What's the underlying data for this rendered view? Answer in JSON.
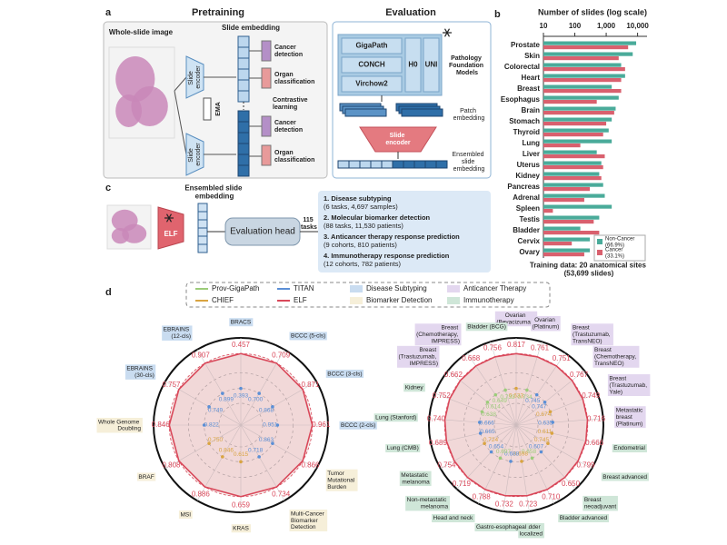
{
  "panel_a": {
    "letter": "a",
    "pretraining_title": "Pretraining",
    "evaluation_title": "Evaluation",
    "wsi_label": "Whole-slide image",
    "slide_embedding": "Slide embedding",
    "slide_encoder": "Slide encoder",
    "ema": "EMA",
    "contrastive": "Contrastive learning",
    "cancer_detection": "Cancer detection",
    "organ_classification": "Organ classification",
    "models": [
      "GigaPath",
      "CONCH",
      "Virchow2",
      "H0",
      "UNI"
    ],
    "foundation_label": "Pathology Foundation Models",
    "patch_embedding": "Patch embedding",
    "ensembled_slide_embedding": "Ensembled slide embedding"
  },
  "panel_c": {
    "letter": "c",
    "ensembled": "Ensembled slide embedding",
    "elf": "ELF",
    "head": "Evaluation head",
    "tasks": "115 tasks",
    "items": [
      {
        "title": "1. Disease subtyping",
        "detail": "(6 tasks, 4,697 samples)"
      },
      {
        "title": "2. Molecular biomarker detection",
        "detail": "(88 tasks, 11,530 patients)"
      },
      {
        "title": "3. Anticancer therapy response prediction",
        "detail": "(9 cohorts, 810 patients)"
      },
      {
        "title": "4. Immunotherapy response prediction",
        "detail": "(12 cohorts, 782 patients)"
      }
    ]
  },
  "panel_d": {
    "letter": "d",
    "models": [
      {
        "name": "Prov-GigaPath",
        "color": "#9ccc7a"
      },
      {
        "name": "CHIEF",
        "color": "#d9a441"
      },
      {
        "name": "TITAN",
        "color": "#5b8fd6"
      },
      {
        "name": "ELF",
        "color": "#d9485a"
      }
    ],
    "task_types": [
      {
        "name": "Disease Subtyping",
        "color": "#c9dcf0"
      },
      {
        "name": "Biomarker Detection",
        "color": "#f6efd9"
      },
      {
        "name": "Anticancer Therapy",
        "color": "#e3d7ef"
      },
      {
        "name": "Immunotherapy",
        "color": "#cfe6d8"
      }
    ]
  },
  "chart_data": [
    {
      "type": "bar",
      "letter": "b",
      "orientation": "horizontal",
      "xlabel": "Number of slides (log scale)",
      "x_scale": "log",
      "xlim": [
        10,
        20000
      ],
      "xticks": [
        10,
        100,
        {
          "value": 1000,
          "label": "1,000"
        },
        {
          "value": 10000,
          "label": "10,000"
        }
      ],
      "categories": [
        "Prostate",
        "Skin",
        "Colorectal",
        "Heart",
        "Breast",
        "Esophagus",
        "Brain",
        "Stomach",
        "Thyroid",
        "Lung",
        "Liver",
        "Uterus",
        "Kidney",
        "Pancreas",
        "Adrenal",
        "Spleen",
        "Testis",
        "Bladder",
        "Cervix",
        "Ovary"
      ],
      "series": [
        {
          "name": "Non-Cancer (66.9%)",
          "color": "#4aab9a",
          "values": [
            9000,
            7000,
            3000,
            4000,
            1500,
            2500,
            2000,
            1500,
            1200,
            1500,
            500,
            700,
            600,
            800,
            900,
            1500,
            600,
            150,
            300,
            300
          ]
        },
        {
          "name": "Cancer (33.1%)",
          "color": "#d9606e",
          "values": [
            5000,
            2500,
            4000,
            3000,
            3000,
            500,
            1800,
            1000,
            800,
            150,
            900,
            800,
            700,
            300,
            200,
            20,
            400,
            600,
            80,
            200
          ]
        }
      ],
      "legend": "lower right",
      "footnote": "Training data: 20 anatomical sites (53,699 slides)"
    },
    {
      "type": "radar",
      "axes": [
        "BRACS",
        "BCCC (5-cls)",
        "BCCC (3-cls)",
        "BCCC (2-cls)",
        "Tumor Mutational Burden",
        "Multi-Cancer Biomarker Detection",
        "KRAS",
        "MSI",
        "BRAF",
        "Whole Genome Doubling",
        "EBRAINS (30-cls)",
        "EBRAINS (12-cls)"
      ],
      "tasks": [
        0,
        0,
        0,
        0,
        1,
        1,
        1,
        1,
        1,
        1,
        0,
        0
      ],
      "series": [
        {
          "name": "ELF",
          "color": "#d9485a",
          "values": [
            0.457,
            0.709,
            0.871,
            0.961,
            0.866,
            0.734,
            0.659,
            0.886,
            0.808,
            0.846,
            0.757,
            0.907
          ],
          "value_labels": [
            "0.457",
            "0.709",
            "0.871",
            "0.961",
            "0.866",
            "0.734",
            "0.659",
            "0.886",
            "0.808",
            "0.846",
            "0.757",
            "0.907"
          ]
        }
      ],
      "baseline_values": [
        0.393,
        0.7,
        0.868,
        0.951,
        0.863,
        0.718,
        0.615,
        0.846,
        0.75,
        0.822,
        0.749,
        0.899
      ],
      "baseline_value_labels": [
        "0.393",
        "0.700",
        "0.868",
        "0.951",
        "0.863",
        "0.718",
        "0.615",
        "0.846",
        "0.750",
        "0.822",
        "0.749",
        "0.899"
      ],
      "baseline_colors": [
        "#5b8fd6",
        "#5b8fd6",
        "#5b8fd6",
        "#5b8fd6",
        "#5b8fd6",
        "#5b8fd6",
        "#d9a441",
        "#d9a441",
        "#d9a441",
        "#5b8fd6",
        "#5b8fd6",
        "#5b8fd6"
      ]
    },
    {
      "type": "radar",
      "axes": [
        "Ovarian (Bevacizumab)",
        "Ovarian (Platinum)",
        "Breast (Trastuzumab, TransNEO)",
        "Breast (Chemotherapy, TransNEO)",
        "Breast (Trastuzumab, Yale)",
        "Metastatic breast (Platinum)",
        "Endometrial",
        "Breast advanced",
        "Breast neoadjuvant",
        "Bladder advanced",
        "Bladder localized",
        "Gastro-esophageal",
        "Head and neck",
        "Non-metastatic melanoma",
        "Metastatic melanoma",
        "Lung (CMB)",
        "Lung (Stanford)",
        "Kidney",
        "Breast (Trastuzumab, IMPRESS)",
        "Breast (Chemotherapy, IMPRESS)",
        "Bladder (BCG)"
      ],
      "tasks": [
        2,
        2,
        2,
        2,
        2,
        2,
        3,
        3,
        3,
        3,
        3,
        3,
        3,
        3,
        3,
        3,
        3,
        3,
        2,
        2,
        3
      ],
      "series": [
        {
          "name": "ELF",
          "color": "#d9485a",
          "values": [
            0.817,
            0.761,
            0.751,
            0.767,
            0.749,
            0.716,
            0.666,
            0.799,
            0.65,
            0.71,
            0.723,
            0.732,
            0.788,
            0.719,
            0.754,
            0.689,
            0.74,
            0.752,
            0.662,
            0.668,
            0.756
          ],
          "value_labels": [
            "0.817",
            "0.761",
            "0.751",
            "0.767",
            "0.749",
            "0.716",
            "0.666",
            "0.799",
            "0.650",
            "0.710",
            "0.723",
            "0.732",
            "0.788",
            "0.719",
            "0.754",
            "0.689",
            "0.740",
            "0.752",
            "0.662",
            "0.668",
            "0.756"
          ]
        }
      ],
      "baseline_values": [
        0.633,
        0.734,
        0.745,
        0.747,
        0.674,
        0.635,
        0.611,
        0.745,
        0.607,
        0.658,
        0.698,
        0.688,
        0.697,
        0.654,
        0.724,
        0.665,
        0.666,
        0.638,
        0.614,
        0.649,
        0.733
      ],
      "baseline_value_labels": [
        "0.633",
        "0.734",
        "0.745",
        "0.747",
        "0.674",
        "0.635",
        "0.611",
        "0.745",
        "0.607",
        "0.658",
        "0.698",
        "0.688",
        "0.697",
        "0.654",
        "0.724",
        "0.665",
        "0.666",
        "0.638",
        "0.614",
        "0.649",
        "0.733"
      ],
      "baseline_colors": [
        "#d9a441",
        "#9ccc7a",
        "#5b8fd6",
        "#5b8fd6",
        "#d9a441",
        "#5b8fd6",
        "#d9a441",
        "#d9a441",
        "#5b8fd6",
        "#9ccc7a",
        "#d9a441",
        "#5b8fd6",
        "#9ccc7a",
        "#5b8fd6",
        "#d9a441",
        "#5b8fd6",
        "#5b8fd6",
        "#9ccc7a",
        "#9ccc7a",
        "#9ccc7a",
        "#9ccc7a"
      ]
    }
  ]
}
